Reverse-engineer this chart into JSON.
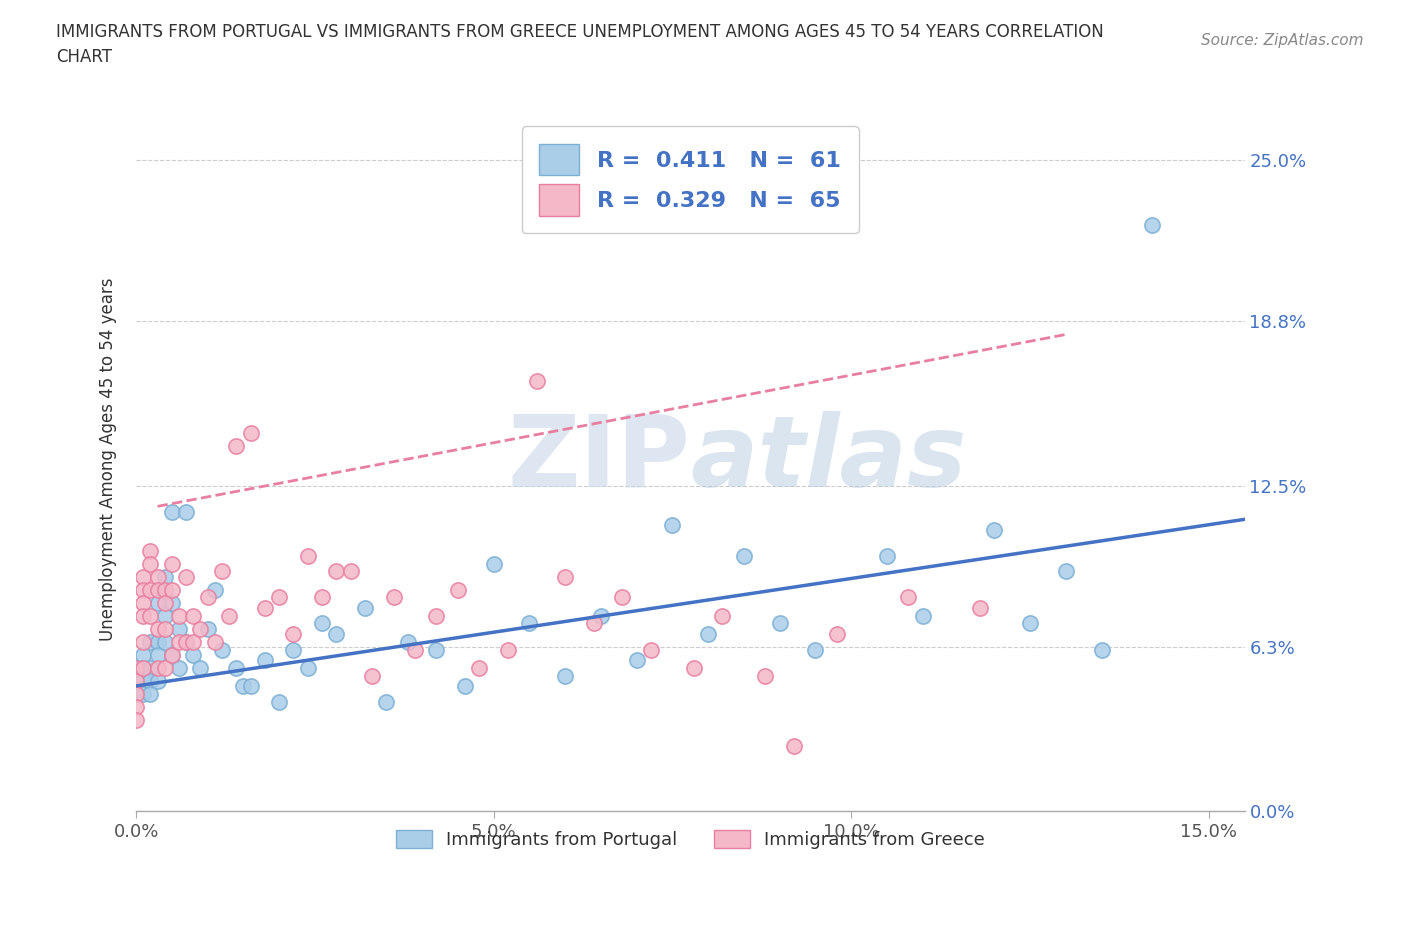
{
  "title": "IMMIGRANTS FROM PORTUGAL VS IMMIGRANTS FROM GREECE UNEMPLOYMENT AMONG AGES 45 TO 54 YEARS CORRELATION\nCHART",
  "source_text": "Source: ZipAtlas.com",
  "ylabel": "Unemployment Among Ages 45 to 54 years",
  "xlim": [
    0.0,
    0.155
  ],
  "ylim": [
    0.0,
    0.27
  ],
  "yticks": [
    0.0,
    0.063,
    0.125,
    0.188,
    0.25
  ],
  "ytick_labels": [
    "0.0%",
    "6.3%",
    "12.5%",
    "18.8%",
    "25.0%"
  ],
  "xticks": [
    0.0,
    0.05,
    0.1,
    0.15
  ],
  "xtick_labels": [
    "0.0%",
    "5.0%",
    "10.0%",
    "15.0%"
  ],
  "portugal_color": "#7bafd4",
  "portugal_fill": "#aacde8",
  "greece_color": "#e87fa0",
  "greece_fill": "#f4b8c8",
  "portugal_R": 0.411,
  "portugal_N": 61,
  "greece_R": 0.329,
  "greece_N": 65,
  "watermark": "ZIPatlas",
  "portugal_scatter_x": [
    0.0,
    0.0,
    0.0,
    0.001,
    0.001,
    0.001,
    0.001,
    0.002,
    0.002,
    0.002,
    0.002,
    0.003,
    0.003,
    0.003,
    0.003,
    0.004,
    0.004,
    0.004,
    0.005,
    0.005,
    0.005,
    0.006,
    0.006,
    0.007,
    0.007,
    0.008,
    0.009,
    0.01,
    0.011,
    0.012,
    0.014,
    0.015,
    0.016,
    0.018,
    0.02,
    0.022,
    0.024,
    0.026,
    0.028,
    0.032,
    0.035,
    0.038,
    0.042,
    0.046,
    0.05,
    0.055,
    0.06,
    0.065,
    0.07,
    0.075,
    0.08,
    0.085,
    0.09,
    0.095,
    0.105,
    0.11,
    0.12,
    0.125,
    0.13,
    0.135,
    0.142
  ],
  "portugal_scatter_y": [
    0.055,
    0.05,
    0.045,
    0.06,
    0.055,
    0.05,
    0.045,
    0.065,
    0.055,
    0.05,
    0.045,
    0.08,
    0.065,
    0.06,
    0.05,
    0.09,
    0.075,
    0.065,
    0.115,
    0.08,
    0.06,
    0.07,
    0.055,
    0.115,
    0.065,
    0.06,
    0.055,
    0.07,
    0.085,
    0.062,
    0.055,
    0.048,
    0.048,
    0.058,
    0.042,
    0.062,
    0.055,
    0.072,
    0.068,
    0.078,
    0.042,
    0.065,
    0.062,
    0.048,
    0.095,
    0.072,
    0.052,
    0.075,
    0.058,
    0.11,
    0.068,
    0.098,
    0.072,
    0.062,
    0.098,
    0.075,
    0.108,
    0.072,
    0.092,
    0.062,
    0.225
  ],
  "greece_scatter_x": [
    0.0,
    0.0,
    0.0,
    0.0,
    0.0,
    0.001,
    0.001,
    0.001,
    0.001,
    0.001,
    0.001,
    0.002,
    0.002,
    0.002,
    0.002,
    0.003,
    0.003,
    0.003,
    0.003,
    0.004,
    0.004,
    0.004,
    0.004,
    0.005,
    0.005,
    0.005,
    0.006,
    0.006,
    0.007,
    0.007,
    0.008,
    0.008,
    0.009,
    0.01,
    0.011,
    0.012,
    0.013,
    0.014,
    0.016,
    0.018,
    0.02,
    0.022,
    0.024,
    0.026,
    0.028,
    0.03,
    0.033,
    0.036,
    0.039,
    0.042,
    0.045,
    0.048,
    0.052,
    0.056,
    0.06,
    0.064,
    0.068,
    0.072,
    0.078,
    0.082,
    0.088,
    0.092,
    0.098,
    0.108,
    0.118
  ],
  "greece_scatter_y": [
    0.055,
    0.05,
    0.045,
    0.04,
    0.035,
    0.09,
    0.085,
    0.08,
    0.075,
    0.065,
    0.055,
    0.1,
    0.095,
    0.085,
    0.075,
    0.09,
    0.085,
    0.07,
    0.055,
    0.085,
    0.08,
    0.07,
    0.055,
    0.095,
    0.085,
    0.06,
    0.075,
    0.065,
    0.09,
    0.065,
    0.075,
    0.065,
    0.07,
    0.082,
    0.065,
    0.092,
    0.075,
    0.14,
    0.145,
    0.078,
    0.082,
    0.068,
    0.098,
    0.082,
    0.092,
    0.092,
    0.052,
    0.082,
    0.062,
    0.075,
    0.085,
    0.055,
    0.062,
    0.165,
    0.09,
    0.072,
    0.082,
    0.062,
    0.055,
    0.075,
    0.052,
    0.025,
    0.068,
    0.082,
    0.078
  ],
  "portugal_line_x": [
    0.0,
    0.155
  ],
  "portugal_line_y": [
    0.048,
    0.112
  ],
  "greece_line_x": [
    0.003,
    0.13
  ],
  "greece_line_y": [
    0.117,
    0.183
  ],
  "background_color": "#ffffff",
  "grid_color": "#cccccc"
}
